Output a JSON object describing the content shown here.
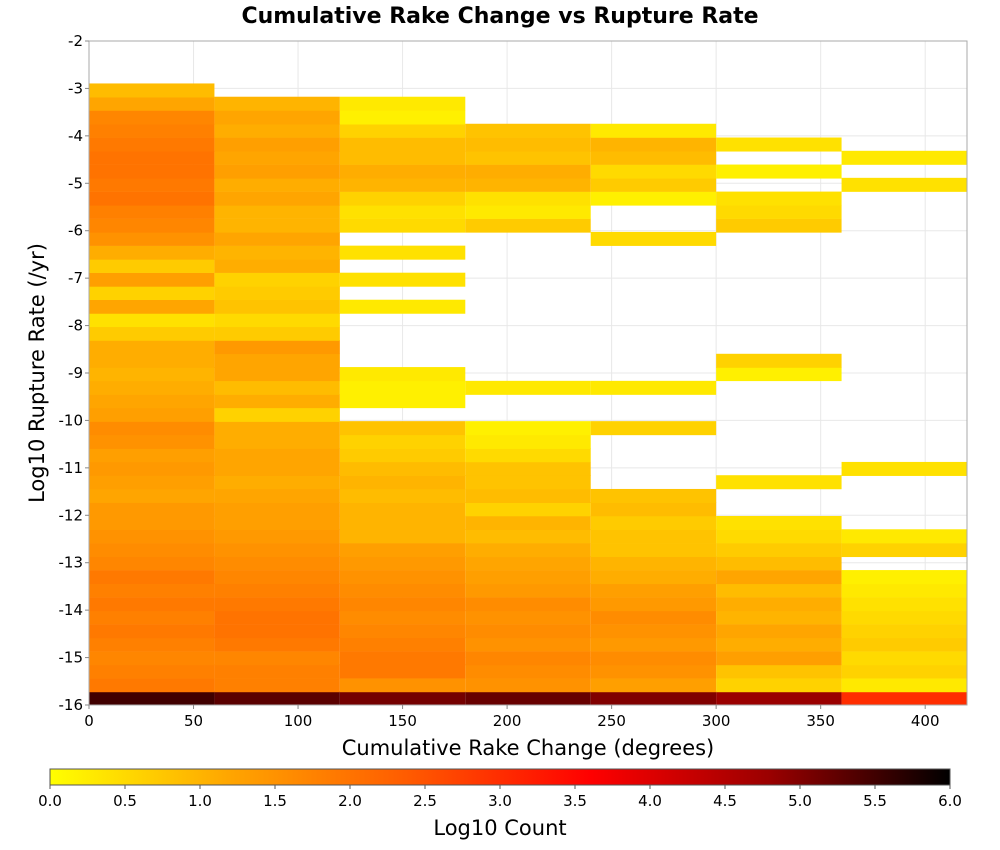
{
  "chart_data": {
    "type": "heatmap",
    "title": "Cumulative Rake Change vs Rupture Rate",
    "xlabel": "Cumulative Rake Change (degrees)",
    "ylabel": "Log10 Rupture Rate (/yr)",
    "xlim": [
      0,
      420
    ],
    "ylim": [
      -16,
      -2
    ],
    "x_ticks": [
      0,
      50,
      100,
      150,
      200,
      250,
      300,
      350,
      400
    ],
    "y_ticks": [
      -2,
      -3,
      -4,
      -5,
      -6,
      -7,
      -8,
      -9,
      -10,
      -11,
      -12,
      -13,
      -14,
      -15,
      -16
    ],
    "x_bin_width": 60,
    "y_bin_height": 0.285,
    "grid": true,
    "colorbar": {
      "label": "Log10 Count",
      "range": [
        0,
        6
      ],
      "ticks": [
        "0.0",
        "0.5",
        "1.0",
        "1.5",
        "2.0",
        "2.5",
        "3.0",
        "3.5",
        "4.0",
        "4.5",
        "5.0",
        "5.5",
        "6.0"
      ],
      "placement": "bottom",
      "colors": [
        "#ffff00",
        "#ffa500",
        "#ff5a00",
        "#ff0000",
        "#9a0000",
        "#000000"
      ]
    },
    "columns": [
      {
        "x_start": 0,
        "bins": [
          [
            -16.0,
            5.5
          ],
          [
            -15.72,
            1.9
          ],
          [
            -15.43,
            1.8
          ],
          [
            -15.15,
            1.7
          ],
          [
            -14.86,
            1.8
          ],
          [
            -14.58,
            1.9
          ],
          [
            -14.29,
            1.8
          ],
          [
            -14.01,
            1.9
          ],
          [
            -13.72,
            1.8
          ],
          [
            -13.44,
            1.9
          ],
          [
            -13.15,
            1.7
          ],
          [
            -12.87,
            1.6
          ],
          [
            -12.58,
            1.5
          ],
          [
            -12.3,
            1.4
          ],
          [
            -12.01,
            1.4
          ],
          [
            -11.73,
            1.2
          ],
          [
            -11.44,
            1.3
          ],
          [
            -11.16,
            1.4
          ],
          [
            -10.87,
            1.3
          ],
          [
            -10.59,
            1.5
          ],
          [
            -10.3,
            1.6
          ],
          [
            -10.02,
            1.3
          ],
          [
            -9.73,
            1.2
          ],
          [
            -9.45,
            1.1
          ],
          [
            -9.16,
            1.0
          ],
          [
            -8.88,
            1.1
          ],
          [
            -8.59,
            1.1
          ],
          [
            -8.31,
            0.7
          ],
          [
            -8.02,
            0.4
          ],
          [
            -7.74,
            1.2
          ],
          [
            -7.45,
            0.6
          ],
          [
            -7.17,
            1.3
          ],
          [
            -6.88,
            0.7
          ],
          [
            -6.6,
            1.1
          ],
          [
            -6.31,
            1.5
          ],
          [
            -6.03,
            1.7
          ],
          [
            -5.74,
            1.8
          ],
          [
            -5.46,
            2.0
          ],
          [
            -5.17,
            1.9
          ],
          [
            -4.89,
            2.0
          ],
          [
            -4.6,
            2.0
          ],
          [
            -4.32,
            1.9
          ],
          [
            -4.03,
            1.8
          ],
          [
            -3.75,
            1.7
          ],
          [
            -3.46,
            1.2
          ],
          [
            -3.18,
            0.9
          ]
        ]
      },
      {
        "x_start": 60,
        "bins": [
          [
            -16.0,
            5.3
          ],
          [
            -15.72,
            1.8
          ],
          [
            -15.43,
            1.8
          ],
          [
            -15.15,
            1.7
          ],
          [
            -14.86,
            1.9
          ],
          [
            -14.58,
            2.0
          ],
          [
            -14.29,
            2.0
          ],
          [
            -14.01,
            1.9
          ],
          [
            -13.72,
            1.8
          ],
          [
            -13.44,
            1.7
          ],
          [
            -13.15,
            1.6
          ],
          [
            -12.87,
            1.5
          ],
          [
            -12.58,
            1.4
          ],
          [
            -12.3,
            1.3
          ],
          [
            -12.01,
            1.3
          ],
          [
            -11.73,
            1.2
          ],
          [
            -11.44,
            1.1
          ],
          [
            -11.16,
            1.2
          ],
          [
            -10.87,
            1.2
          ],
          [
            -10.59,
            1.1
          ],
          [
            -10.3,
            1.1
          ],
          [
            -10.02,
            0.6
          ],
          [
            -9.73,
            1.1
          ],
          [
            -9.45,
            0.9
          ],
          [
            -9.16,
            1.2
          ],
          [
            -8.88,
            1.2
          ],
          [
            -8.59,
            1.4
          ],
          [
            -8.31,
            0.7
          ],
          [
            -8.02,
            0.5
          ],
          [
            -7.74,
            0.8
          ],
          [
            -7.45,
            0.7
          ],
          [
            -7.17,
            0.6
          ],
          [
            -6.88,
            1.1
          ],
          [
            -6.6,
            1.0
          ],
          [
            -6.31,
            1.2
          ],
          [
            -6.03,
            1.0
          ],
          [
            -5.74,
            1.0
          ],
          [
            -5.46,
            1.2
          ],
          [
            -5.17,
            1.1
          ],
          [
            -4.89,
            1.3
          ],
          [
            -4.6,
            1.2
          ],
          [
            -4.32,
            1.3
          ],
          [
            -4.03,
            1.1
          ],
          [
            -3.75,
            1.2
          ],
          [
            -3.46,
            1.0
          ]
        ]
      },
      {
        "x_start": 120,
        "bins": [
          [
            -16.0,
            5.1
          ],
          [
            -15.72,
            1.5
          ],
          [
            -15.43,
            1.9
          ],
          [
            -15.15,
            1.9
          ],
          [
            -14.86,
            1.8
          ],
          [
            -14.58,
            1.7
          ],
          [
            -14.29,
            1.6
          ],
          [
            -14.01,
            1.7
          ],
          [
            -13.72,
            1.6
          ],
          [
            -13.44,
            1.5
          ],
          [
            -13.15,
            1.4
          ],
          [
            -12.87,
            1.3
          ],
          [
            -12.58,
            1.0
          ],
          [
            -12.3,
            1.0
          ],
          [
            -12.01,
            1.0
          ],
          [
            -11.73,
            0.9
          ],
          [
            -11.44,
            1.0
          ],
          [
            -11.16,
            0.9
          ],
          [
            -10.87,
            0.7
          ],
          [
            -10.59,
            0.6
          ],
          [
            -10.3,
            0.8
          ],
          [
            -9.73,
            0.2
          ],
          [
            -9.45,
            0.2
          ],
          [
            -9.16,
            0.3
          ],
          [
            -7.74,
            0.3
          ],
          [
            -7.17,
            0.4
          ],
          [
            -6.6,
            0.4
          ],
          [
            -6.03,
            0.5
          ],
          [
            -5.74,
            0.4
          ],
          [
            -5.46,
            0.6
          ],
          [
            -5.17,
            1.0
          ],
          [
            -4.89,
            1.1
          ],
          [
            -4.6,
            0.9
          ],
          [
            -4.32,
            0.9
          ],
          [
            -4.03,
            0.6
          ],
          [
            -3.75,
            0.2
          ],
          [
            -3.46,
            0.3
          ]
        ]
      },
      {
        "x_start": 180,
        "bins": [
          [
            -16.0,
            5.2
          ],
          [
            -15.72,
            1.5
          ],
          [
            -15.43,
            1.6
          ],
          [
            -15.15,
            1.7
          ],
          [
            -14.86,
            1.5
          ],
          [
            -14.58,
            1.6
          ],
          [
            -14.29,
            1.5
          ],
          [
            -14.01,
            1.6
          ],
          [
            -13.72,
            1.4
          ],
          [
            -13.44,
            1.3
          ],
          [
            -13.15,
            1.2
          ],
          [
            -12.87,
            1.1
          ],
          [
            -12.58,
            0.9
          ],
          [
            -12.3,
            1.0
          ],
          [
            -12.01,
            0.6
          ],
          [
            -11.73,
            0.9
          ],
          [
            -11.44,
            0.8
          ],
          [
            -11.16,
            0.8
          ],
          [
            -10.87,
            0.5
          ],
          [
            -10.59,
            0.3
          ],
          [
            -10.3,
            0.2
          ],
          [
            -9.45,
            0.3
          ],
          [
            -6.03,
            0.7
          ],
          [
            -5.74,
            0.3
          ],
          [
            -5.46,
            0.4
          ],
          [
            -5.17,
            1.0
          ],
          [
            -4.89,
            1.1
          ],
          [
            -4.6,
            0.8
          ],
          [
            -4.32,
            0.9
          ],
          [
            -4.03,
            0.8
          ]
        ]
      },
      {
        "x_start": 240,
        "bins": [
          [
            -16.0,
            5.0
          ],
          [
            -15.72,
            1.3
          ],
          [
            -15.43,
            1.5
          ],
          [
            -15.15,
            1.6
          ],
          [
            -14.86,
            1.4
          ],
          [
            -14.58,
            1.5
          ],
          [
            -14.29,
            1.6
          ],
          [
            -14.01,
            1.4
          ],
          [
            -13.72,
            1.3
          ],
          [
            -13.44,
            1.1
          ],
          [
            -13.15,
            1.0
          ],
          [
            -12.87,
            0.8
          ],
          [
            -12.58,
            0.8
          ],
          [
            -12.3,
            0.7
          ],
          [
            -12.01,
            0.9
          ],
          [
            -11.73,
            0.8
          ],
          [
            -10.3,
            0.6
          ],
          [
            -9.45,
            0.3
          ],
          [
            -6.31,
            0.5
          ],
          [
            -5.46,
            0.2
          ],
          [
            -5.17,
            0.7
          ],
          [
            -4.89,
            0.5
          ],
          [
            -4.6,
            0.9
          ],
          [
            -4.32,
            1.0
          ],
          [
            -4.03,
            0.3
          ]
        ]
      },
      {
        "x_start": 300,
        "bins": [
          [
            -16.0,
            4.8
          ],
          [
            -15.72,
            0.6
          ],
          [
            -15.43,
            0.8
          ],
          [
            -15.15,
            1.3
          ],
          [
            -14.86,
            1.1
          ],
          [
            -14.58,
            1.2
          ],
          [
            -14.29,
            1.0
          ],
          [
            -14.01,
            1.1
          ],
          [
            -13.72,
            0.9
          ],
          [
            -13.44,
            1.2
          ],
          [
            -13.15,
            0.9
          ],
          [
            -12.87,
            0.7
          ],
          [
            -12.58,
            0.5
          ],
          [
            -12.3,
            0.4
          ],
          [
            -11.44,
            0.4
          ],
          [
            -9.16,
            0.2
          ],
          [
            -8.88,
            0.6
          ],
          [
            -6.03,
            0.7
          ],
          [
            -5.74,
            0.5
          ],
          [
            -5.46,
            0.4
          ],
          [
            -4.89,
            0.2
          ],
          [
            -4.32,
            0.4
          ]
        ]
      },
      {
        "x_start": 360,
        "bins": [
          [
            -16.0,
            3.0
          ],
          [
            -15.72,
            0.3
          ],
          [
            -15.43,
            0.6
          ],
          [
            -15.15,
            0.5
          ],
          [
            -14.86,
            0.7
          ],
          [
            -14.58,
            0.6
          ],
          [
            -14.29,
            0.5
          ],
          [
            -14.01,
            0.4
          ],
          [
            -13.72,
            0.3
          ],
          [
            -13.44,
            0.2
          ],
          [
            -12.87,
            0.6
          ],
          [
            -12.58,
            0.3
          ],
          [
            -11.16,
            0.4
          ],
          [
            -5.17,
            0.4
          ],
          [
            -4.6,
            0.3
          ]
        ]
      }
    ]
  }
}
